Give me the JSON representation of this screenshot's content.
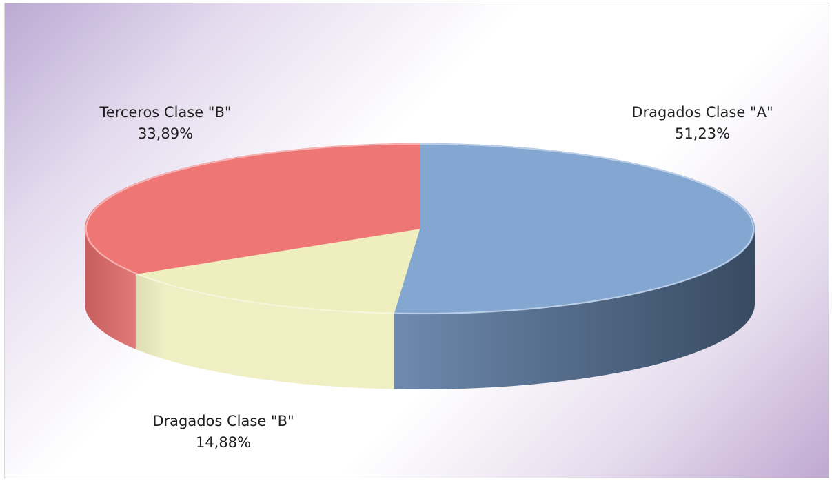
{
  "chart_data": {
    "type": "pie",
    "style": "3d",
    "slices": [
      {
        "label": "Dragados Clase \"A\"",
        "value": 51.23,
        "percent_label": "51,23%",
        "color": "#84a7d2",
        "side_dark": "#374a61",
        "side_light": "#6f8bb0"
      },
      {
        "label": "Dragados Clase \"B\"",
        "value": 14.88,
        "percent_label": "14,88%",
        "color": "#efeebf",
        "side_dark": "#bdbc94",
        "side_light": "#f0efc4"
      },
      {
        "label": "Terceros Clase \"B\"",
        "value": 33.89,
        "percent_label": "33,89%",
        "color": "#ee7675",
        "side_dark": "#c75e5e",
        "side_light": "#f08a89"
      }
    ],
    "legend": "none",
    "data_labels": "outside"
  }
}
